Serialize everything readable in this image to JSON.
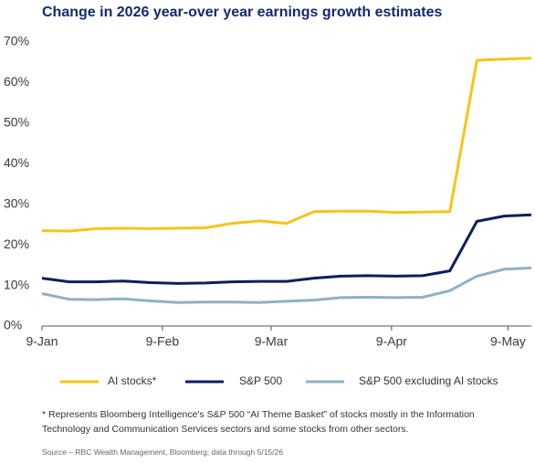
{
  "chart_data": {
    "type": "line",
    "title": "Change in 2026 year-over year earnings growth estimates",
    "x": [
      "9-Jan",
      "16-Jan",
      "23-Jan",
      "30-Jan",
      "6-Feb",
      "13-Feb",
      "20-Feb",
      "27-Feb",
      "6-Mar",
      "13-Mar",
      "20-Mar",
      "27-Mar",
      "3-Apr",
      "10-Apr",
      "17-Apr",
      "24-Apr",
      "1-May",
      "8-May",
      "15-May"
    ],
    "xlim": [
      "9-Jan",
      "15-May"
    ],
    "xticks": [
      "9-Jan",
      "9-Feb",
      "9-Mar",
      "9-Apr",
      "9-May"
    ],
    "ylim": [
      0,
      70
    ],
    "yticks": [
      {
        "value": 0,
        "label": "0%"
      },
      {
        "value": 10,
        "label": "10%"
      },
      {
        "value": 20,
        "label": "20%"
      },
      {
        "value": 30,
        "label": "30%"
      },
      {
        "value": 40,
        "label": "40%"
      },
      {
        "value": 50,
        "label": "50%"
      },
      {
        "value": 60,
        "label": "60%"
      },
      {
        "value": 70,
        "label": "70%"
      }
    ],
    "grid": false,
    "series": [
      {
        "name": "AI stocks*",
        "color": "#f5c518",
        "values": [
          23.5,
          23.4,
          24.0,
          24.1,
          24.0,
          24.1,
          24.2,
          25.3,
          25.9,
          25.3,
          28.2,
          28.3,
          28.3,
          28.0,
          28.1,
          28.2,
          65.5,
          65.8,
          66.0
        ]
      },
      {
        "name": "S&P 500",
        "color": "#0d1f5c",
        "values": [
          11.8,
          10.9,
          10.9,
          11.1,
          10.7,
          10.5,
          10.6,
          10.9,
          11.0,
          11.0,
          11.8,
          12.3,
          12.4,
          12.3,
          12.4,
          13.6,
          25.8,
          27.1,
          27.4
        ]
      },
      {
        "name": "S&P 500 excluding AI stocks",
        "color": "#8fb1c4",
        "values": [
          8.0,
          6.6,
          6.5,
          6.7,
          6.2,
          5.8,
          5.9,
          5.9,
          5.8,
          6.1,
          6.4,
          7.0,
          7.1,
          7.0,
          7.1,
          8.7,
          12.3,
          14.0,
          14.3
        ]
      }
    ],
    "footnote": "* Represents Bloomberg Intelligence's S&P 500 “AI Theme Basket” of stocks mostly in the Information Technology and Communication Services sectors and some stocks from other sectors.",
    "source": "Source – RBC Wealth Management, Bloomberg; data through 5/15/26"
  }
}
